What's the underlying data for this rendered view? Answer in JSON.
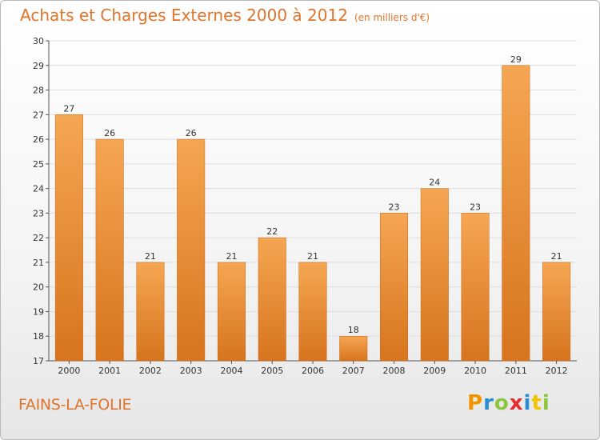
{
  "header": {
    "title": "Achats et Charges Externes 2000 à 2012",
    "subtitle": "(en milliers d'€)"
  },
  "footer": {
    "place": "FAINS-LA-FOLIE",
    "brand_letters": [
      "P",
      "r",
      "o",
      "x",
      "i",
      "t",
      "i"
    ],
    "brand_colors": [
      "#f29400",
      "#2a8fd0",
      "#8cc63f",
      "#e52b2b",
      "#2a8fd0",
      "#f2c400",
      "#8cc63f"
    ]
  },
  "colors": {
    "bar_top": "#f5a652",
    "bar_bottom": "#d7741d",
    "axis": "#555555",
    "grid": "#dddddd"
  },
  "chart_data": {
    "type": "bar",
    "categories": [
      "2000",
      "2001",
      "2002",
      "2003",
      "2004",
      "2005",
      "2006",
      "2007",
      "2008",
      "2009",
      "2010",
      "2011",
      "2012"
    ],
    "values": [
      27,
      26,
      21,
      26,
      21,
      22,
      21,
      18,
      23,
      24,
      23,
      29,
      21
    ],
    "ylim": [
      17,
      30
    ],
    "yticks": [
      17,
      18,
      19,
      20,
      21,
      22,
      23,
      24,
      25,
      26,
      27,
      28,
      29,
      30
    ],
    "grid": true
  }
}
